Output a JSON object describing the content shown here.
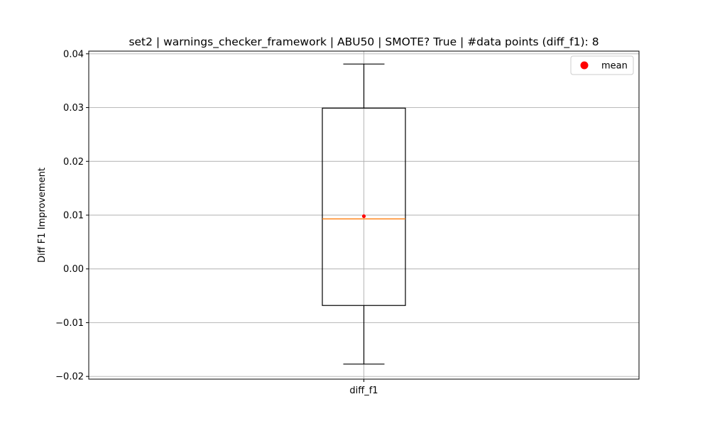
{
  "chart_data": {
    "type": "box",
    "title": "set2 | warnings_checker_framework | ABU50 | SMOTE? True | #data points (diff_f1): 8",
    "xlabel": "",
    "ylabel": "Diff F1 Improvement",
    "categories": [
      "diff_f1"
    ],
    "ylim": [
      -0.0205,
      0.0405
    ],
    "yticks": [
      -0.02,
      -0.01,
      0.0,
      0.01,
      0.02,
      0.03,
      0.04
    ],
    "ytick_labels": [
      "−0.02",
      "−0.01",
      "0.00",
      "0.01",
      "0.02",
      "0.03",
      "0.04"
    ],
    "grid": true,
    "legend": {
      "position": "top-right",
      "entries": [
        {
          "label": "mean",
          "color": "#ff0000",
          "marker": "circle"
        }
      ]
    },
    "boxes": [
      {
        "category": "diff_f1",
        "whisker_low": -0.0177,
        "q1": -0.0068,
        "median": 0.0093,
        "q3": 0.0299,
        "whisker_high": 0.0381,
        "mean": 0.0098
      }
    ],
    "colors": {
      "box": "#000000",
      "median": "#ff7f0e",
      "mean": "#ff0000",
      "grid": "#b0b0b0"
    }
  }
}
